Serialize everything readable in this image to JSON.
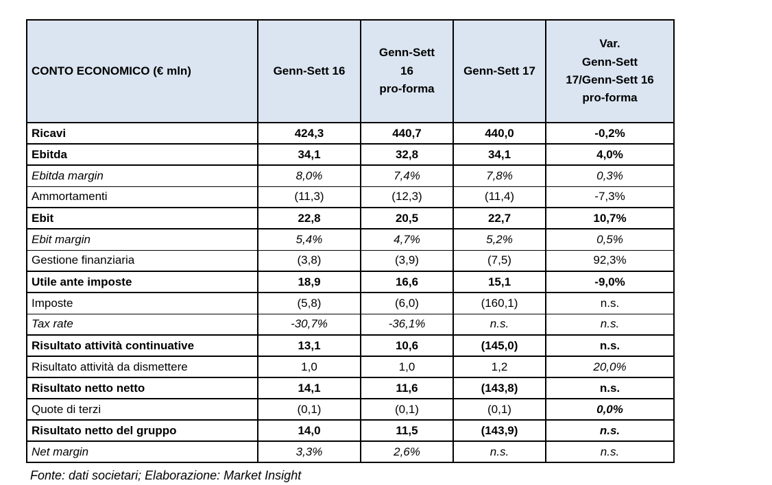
{
  "page": {
    "footer": "Fonte: dati societari; Elaborazione: Market Insight"
  },
  "colors": {
    "header_bg": "#dbe5f1",
    "border": "#000000",
    "text": "#000000"
  },
  "table": {
    "headers": [
      {
        "label": "CONTO ECONOMICO (€ mln)"
      },
      {
        "label": "Genn-Sett 16"
      },
      {
        "label": "Genn-Sett\n16\npro-forma"
      },
      {
        "label": "Genn-Sett 17"
      },
      {
        "label": "Var.\nGenn-Sett\n17/Genn-Sett 16\npro-forma"
      }
    ],
    "rows": [
      {
        "label": "Ricavi",
        "values": [
          "424,3",
          "440,7",
          "440,0",
          "-0,2%"
        ],
        "style": "bold"
      },
      {
        "label": "Ebitda",
        "values": [
          "34,1",
          "32,8",
          "34,1",
          "4,0%"
        ],
        "style": "bold"
      },
      {
        "label": "Ebitda margin",
        "values": [
          "8,0%",
          "7,4%",
          "7,8%",
          "0,3%"
        ],
        "style": "italic"
      },
      {
        "label": "Ammortamenti",
        "values": [
          "(11,3)",
          "(12,3)",
          "(11,4)",
          "-7,3%"
        ],
        "style": "normal"
      },
      {
        "label": "Ebit",
        "values": [
          "22,8",
          "20,5",
          "22,7",
          "10,7%"
        ],
        "style": "bold"
      },
      {
        "label": "Ebit margin",
        "values": [
          "5,4%",
          "4,7%",
          "5,2%",
          "0,5%"
        ],
        "style": "italic"
      },
      {
        "label": "Gestione finanziaria",
        "values": [
          "(3,8)",
          "(3,9)",
          "(7,5)",
          "92,3%"
        ],
        "style": "normal"
      },
      {
        "label": "Utile ante imposte",
        "values": [
          "18,9",
          "16,6",
          "15,1",
          "-9,0%"
        ],
        "style": "bold"
      },
      {
        "label": "Imposte",
        "values": [
          "(5,8)",
          "(6,0)",
          "(160,1)",
          "n.s."
        ],
        "style": "normal"
      },
      {
        "label": "Tax rate",
        "values": [
          "-30,7%",
          "-36,1%",
          "n.s.",
          "n.s."
        ],
        "style": "italic"
      },
      {
        "label": "Risultato attività continuative",
        "values": [
          "13,1",
          "10,6",
          "(145,0)",
          "n.s."
        ],
        "style": "bold"
      },
      {
        "label": "Risultato attività da dismettere",
        "values": [
          "1,0",
          "1,0",
          "1,2",
          "20,0%"
        ],
        "style": "normal",
        "var_style": "italic"
      },
      {
        "label": "Risultato netto netto",
        "values": [
          "14,1",
          "11,6",
          "(143,8)",
          "n.s."
        ],
        "style": "bold"
      },
      {
        "label": "Quote di terzi",
        "values": [
          "(0,1)",
          "(0,1)",
          "(0,1)",
          "0,0%"
        ],
        "style": "normal",
        "var_style": "bold-italic"
      },
      {
        "label": "Risultato netto del gruppo",
        "values": [
          "14,0",
          "11,5",
          "(143,9)",
          "n.s."
        ],
        "style": "bold",
        "var_style": "bold-italic"
      },
      {
        "label": "Net margin",
        "values": [
          "3,3%",
          "2,6%",
          "n.s.",
          "n.s."
        ],
        "style": "italic"
      }
    ]
  }
}
